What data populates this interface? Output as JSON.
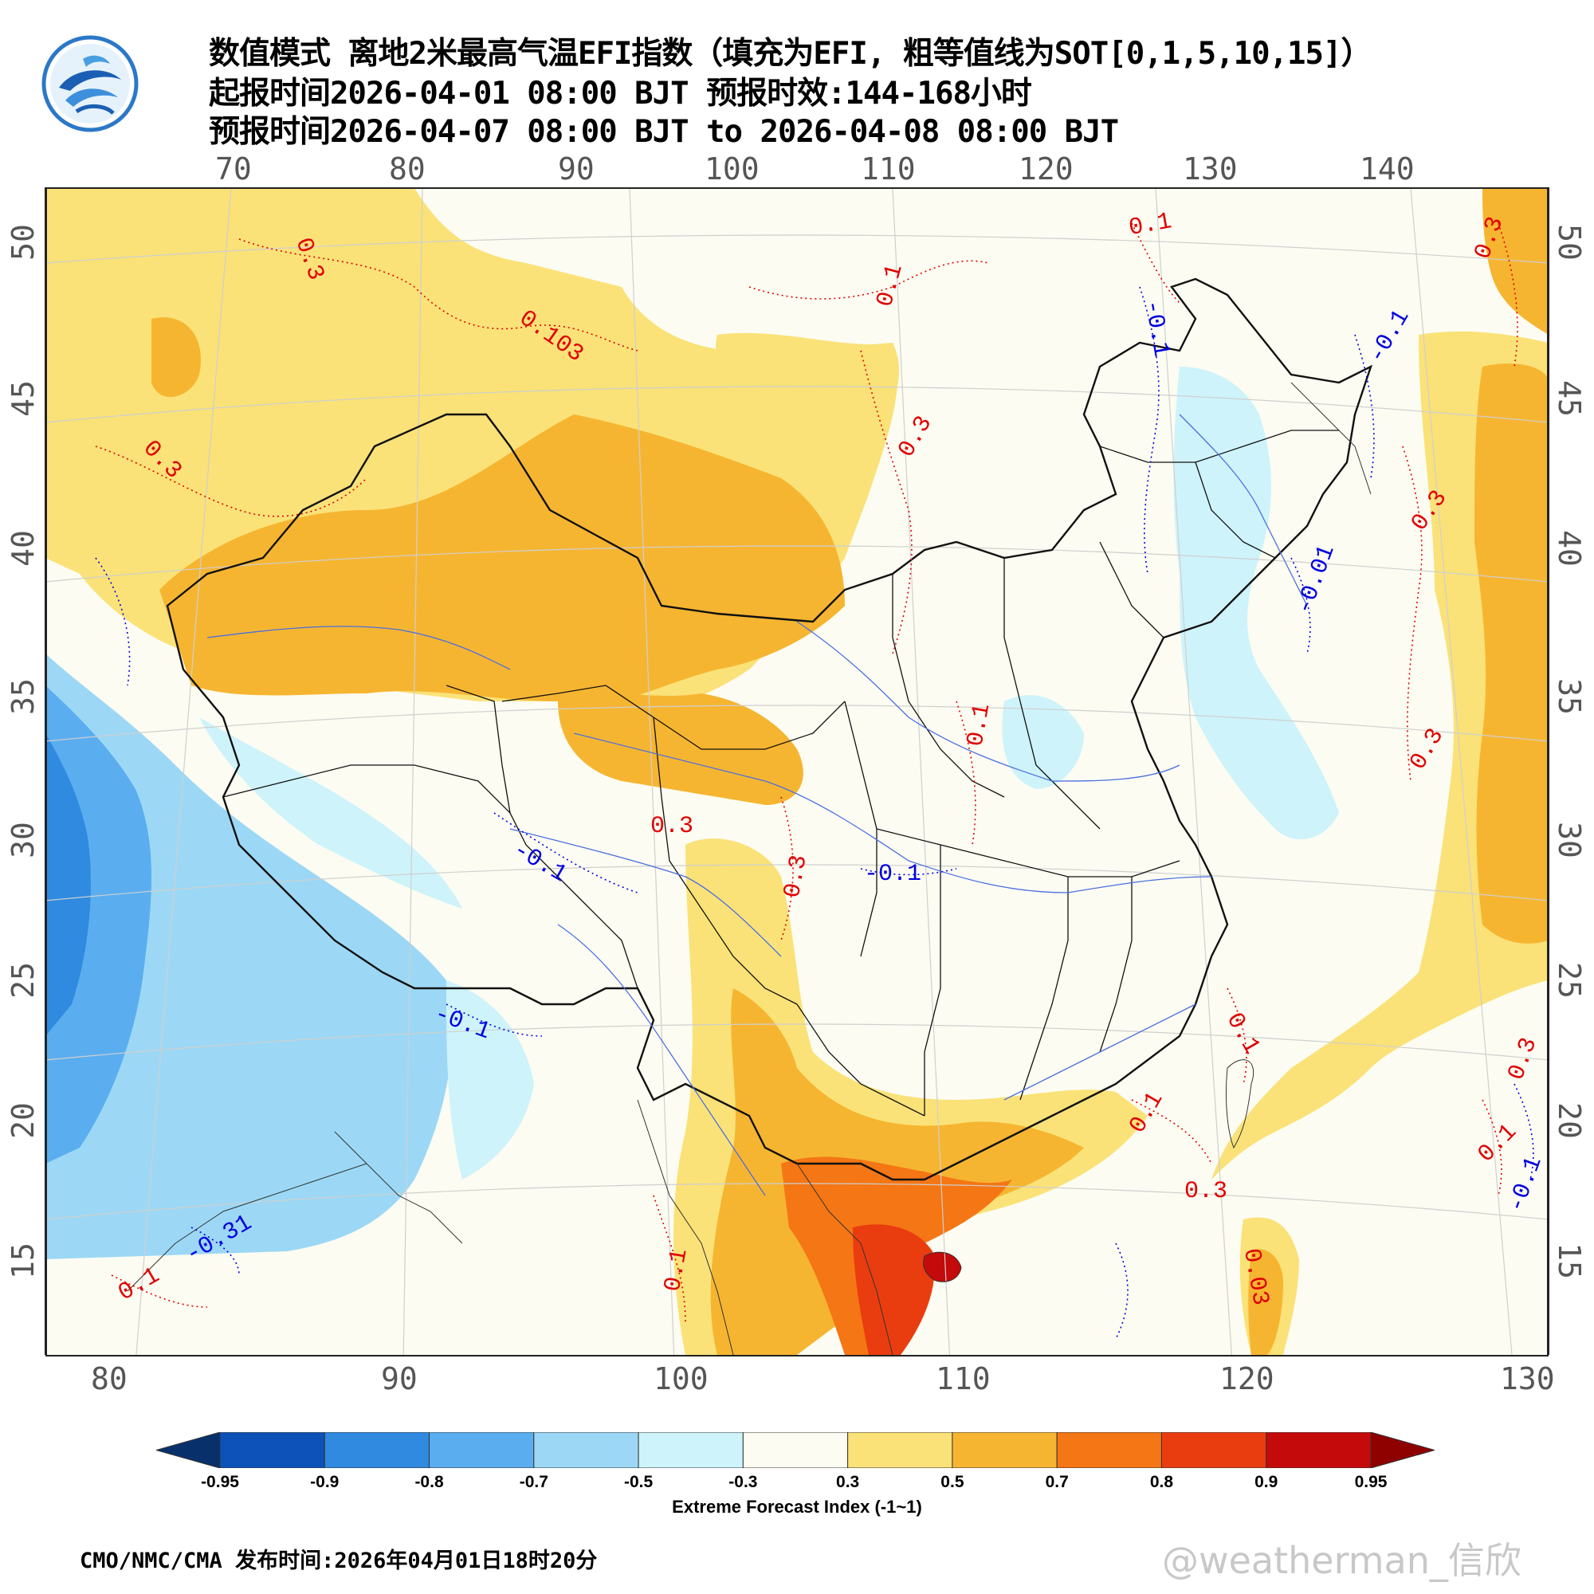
{
  "title": {
    "line1": "数值模式 离地2米最高气温EFI指数（填充为EFI, 粗等值线为SOT[0,1,5,10,15]）",
    "line2": "起报时间2026-04-01 08:00 BJT 预报时效:144-168小时",
    "line3": "预报时间2026-04-07 08:00 BJT to 2026-04-08 08:00 BJT"
  },
  "logo": {
    "icon": "cma-logo-icon",
    "colors": [
      "#1a5fb4",
      "#4a9fe0"
    ]
  },
  "axes": {
    "top_longitudes": [
      "70",
      "80",
      "90",
      "100",
      "110",
      "120",
      "130",
      "140"
    ],
    "bottom_longitudes": [
      "80",
      "90",
      "100",
      "110",
      "120",
      "130"
    ],
    "left_latitudes": [
      "50",
      "45",
      "40",
      "35",
      "30",
      "25",
      "20",
      "15"
    ],
    "right_latitudes": [
      "50",
      "45",
      "40",
      "35",
      "30",
      "25",
      "20",
      "15"
    ]
  },
  "contour_labels": [
    {
      "text": "0.3",
      "color": "#e00000"
    },
    {
      "text": "0.1",
      "color": "#e00000"
    },
    {
      "text": "0.1",
      "color": "#e00000"
    },
    {
      "text": "0.103",
      "color": "#e00000"
    },
    {
      "text": "0.3",
      "color": "#e00000"
    },
    {
      "text": "0.3",
      "color": "#e00000"
    },
    {
      "text": "-0.1",
      "color": "#0000e0"
    },
    {
      "text": "-0.1",
      "color": "#0000e0"
    },
    {
      "text": "0.3",
      "color": "#e00000"
    },
    {
      "text": "-0.01",
      "color": "#0000e0"
    },
    {
      "text": "0.1",
      "color": "#e00000"
    },
    {
      "text": "0.3",
      "color": "#e00000"
    },
    {
      "text": "-0.1",
      "color": "#0000e0"
    },
    {
      "text": "-0.1",
      "color": "#0000e0"
    },
    {
      "text": "0.3",
      "color": "#e00000"
    },
    {
      "text": "-0.1",
      "color": "#0000e0"
    },
    {
      "text": "0.1",
      "color": "#e00000"
    },
    {
      "text": "0.1",
      "color": "#e00000"
    },
    {
      "text": "0.3",
      "color": "#e00000"
    },
    {
      "text": "0.3",
      "color": "#e00000"
    },
    {
      "text": "0.1",
      "color": "#e00000"
    },
    {
      "text": "-0.1",
      "color": "#0000e0"
    },
    {
      "text": "-0.31",
      "color": "#0000e0"
    },
    {
      "text": "0.1",
      "color": "#e00000"
    },
    {
      "text": "0.03",
      "color": "#e00000"
    },
    {
      "text": "0.1",
      "color": "#e00000"
    },
    {
      "text": "0.3",
      "color": "#e00000"
    },
    {
      "text": "0.3",
      "color": "#e00000"
    }
  ],
  "colorbar": {
    "ticks": [
      "-0.95",
      "-0.9",
      "-0.8",
      "-0.7",
      "-0.5",
      "-0.3",
      "0.3",
      "0.5",
      "0.7",
      "0.8",
      "0.9",
      "0.95"
    ],
    "colors": [
      "#08306b",
      "#0d52b8",
      "#2f8ae0",
      "#5aaef0",
      "#9cd8f5",
      "#cef3fa",
      "#fcfcf2",
      "#fae278",
      "#f6b531",
      "#f47614",
      "#ea3d0f",
      "#c40a0a",
      "#8f0000"
    ],
    "label": "Extreme Forecast Index (-1~1)"
  },
  "footer": "CMO/NMC/CMA 发布时间:2026年04月01日18时20分",
  "watermark": "@weatherman_信欣"
}
